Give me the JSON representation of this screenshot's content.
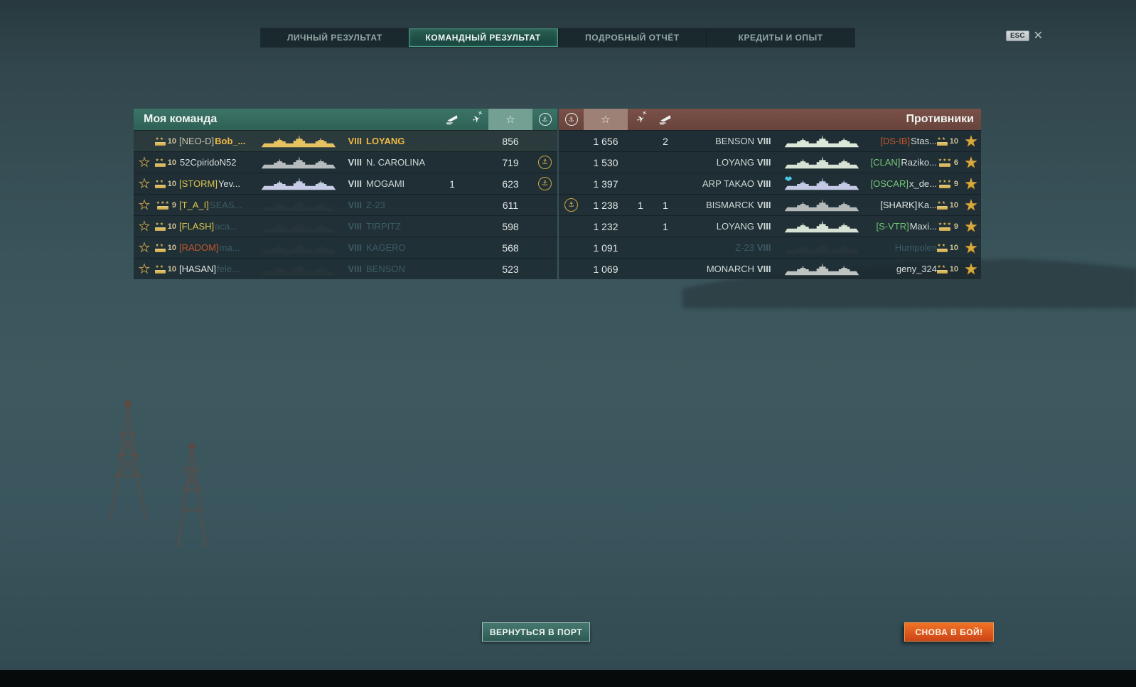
{
  "tabs": [
    {
      "label": "ЛИЧНЫЙ РЕЗУЛЬТАТ",
      "active": false
    },
    {
      "label": "КОМАНДНЫЙ РЕЗУЛЬТАТ",
      "active": true
    },
    {
      "label": "ПОДРОБНЫЙ ОТЧЁТ",
      "active": false
    },
    {
      "label": "КРЕДИТЫ И ОПЫТ",
      "active": false
    }
  ],
  "esc_label": "ESC",
  "close_glyph": "✕",
  "colors": {
    "team_header": "#35685d",
    "team_header_highlight": "#73a093",
    "enemy_header": "#70463d",
    "enemy_header_highlight": "#9d8076",
    "player_gold": "#efb845",
    "dead_text": "#3c5a64",
    "clan_yellow": "#d8c54e",
    "clan_orange": "#c2562b",
    "clan_green": "#74c578",
    "clan_white": "#e2e6e4",
    "clan_tan": "#c6c2ae",
    "medal_gold": "#d9b752",
    "button_orange": "#e8641e",
    "button_teal": "#3c6e66"
  },
  "header_icons": [
    "sinking-ship-icon",
    "downed-plane-icon",
    "star-icon",
    "anchor-medal-icon"
  ],
  "my_team": {
    "title": "Моя команда",
    "rows": [
      {
        "like": false,
        "rank": "10",
        "rank_stars": 2,
        "clan": "[NEO-D]",
        "clan_color": "#c6c2ae",
        "name": "Bob_...",
        "player": true,
        "dead": false,
        "tier": "VIII",
        "ship": "LOYANG",
        "ship_color": "#e6c260",
        "ship_kills": "",
        "plane_kills": "",
        "xp": "856",
        "medal": false
      },
      {
        "like": true,
        "rank": "10",
        "rank_stars": 2,
        "clan": "",
        "clan_color": "",
        "name": "52CpiridoN52",
        "player": false,
        "dead": false,
        "tier": "VIII",
        "ship": "N. CAROLINA",
        "ship_color": "#b6bcbe",
        "ship_kills": "",
        "plane_kills": "",
        "xp": "719",
        "medal": true
      },
      {
        "like": true,
        "rank": "10",
        "rank_stars": 2,
        "clan": "[STORM]",
        "clan_color": "#d8c54e",
        "name": "Yev...",
        "player": false,
        "dead": false,
        "tier": "VIII",
        "ship": "MOGAMI",
        "ship_color": "#c6cbe6",
        "ship_kills": "1",
        "plane_kills": "",
        "xp": "623",
        "medal": true
      },
      {
        "like": true,
        "rank": "9",
        "rank_stars": 3,
        "clan": "[T_A_I]",
        "clan_color": "#d8c54e",
        "name": "SEAS...",
        "player": false,
        "dead": true,
        "tier": "VIII",
        "ship": "Z-23",
        "ship_color": "#263439",
        "ship_kills": "",
        "plane_kills": "",
        "xp": "611",
        "medal": false
      },
      {
        "like": true,
        "rank": "10",
        "rank_stars": 2,
        "clan": "[FLASH]",
        "clan_color": "#d8c54e",
        "name": "aca...",
        "player": false,
        "dead": true,
        "tier": "VIII",
        "ship": "TIRPITZ",
        "ship_color": "#263439",
        "ship_kills": "",
        "plane_kills": "",
        "xp": "598",
        "medal": false
      },
      {
        "like": true,
        "rank": "10",
        "rank_stars": 2,
        "clan": "[RADOM]",
        "clan_color": "#c2562b",
        "name": "ma...",
        "player": false,
        "dead": true,
        "tier": "VIII",
        "ship": "KAGERO",
        "ship_color": "#263439",
        "ship_kills": "",
        "plane_kills": "",
        "xp": "568",
        "medal": false
      },
      {
        "like": true,
        "rank": "10",
        "rank_stars": 2,
        "clan": "[HASAN]",
        "clan_color": "#e2e6e4",
        "name": "fele...",
        "player": false,
        "dead": true,
        "tier": "VIII",
        "ship": "BENSON",
        "ship_color": "#263439",
        "ship_kills": "",
        "plane_kills": "",
        "xp": "523",
        "medal": false
      }
    ]
  },
  "opponents": {
    "title": "Противники",
    "rows": [
      {
        "medal": false,
        "xp": "1 656",
        "plane_kills": "",
        "ship_kills": "2",
        "ship": "BENSON",
        "tier": "VIII",
        "ship_color": "#dce8d8",
        "special_icon": false,
        "clan": "[DS-IB]",
        "clan_color": "#c2562b",
        "name": "Stas...",
        "dead": false,
        "rank": "10",
        "rank_stars": 2,
        "star": true
      },
      {
        "medal": false,
        "xp": "1 530",
        "plane_kills": "",
        "ship_kills": "",
        "ship": "LOYANG",
        "tier": "VIII",
        "ship_color": "#d6e3d4",
        "special_icon": false,
        "clan": "[CLAN]",
        "clan_color": "#74c578",
        "name": "Raziko...",
        "dead": false,
        "rank": "6",
        "rank_stars": 3,
        "star": true
      },
      {
        "medal": false,
        "xp": "1 397",
        "plane_kills": "",
        "ship_kills": "",
        "ship": "ARP TAKAO",
        "tier": "VIII",
        "ship_color": "#c3c9e4",
        "special_icon": true,
        "clan": "[OSCAR]",
        "clan_color": "#74c578",
        "name": "x_de...",
        "dead": false,
        "rank": "9",
        "rank_stars": 3,
        "star": true
      },
      {
        "medal": true,
        "xp": "1 238",
        "plane_kills": "1",
        "ship_kills": "1",
        "ship": "BISMARCK",
        "tier": "VIII",
        "ship_color": "#b4bab9",
        "special_icon": false,
        "clan": "[SHARK]",
        "clan_color": "#e2e6e4",
        "name": "Ka...",
        "dead": false,
        "rank": "10",
        "rank_stars": 2,
        "star": true
      },
      {
        "medal": false,
        "xp": "1 232",
        "plane_kills": "",
        "ship_kills": "1",
        "ship": "LOYANG",
        "tier": "VIII",
        "ship_color": "#d6e3d4",
        "special_icon": false,
        "clan": "[S-VTR]",
        "clan_color": "#74c578",
        "name": "Maxi...",
        "dead": false,
        "rank": "9",
        "rank_stars": 3,
        "star": true
      },
      {
        "medal": false,
        "xp": "1 091",
        "plane_kills": "",
        "ship_kills": "",
        "ship": "Z-23",
        "tier": "VIII",
        "ship_color": "#263439",
        "special_icon": false,
        "clan": "",
        "clan_color": "",
        "name": "Humpolen",
        "dead": true,
        "rank": "10",
        "rank_stars": 2,
        "star": true
      },
      {
        "medal": false,
        "xp": "1 069",
        "plane_kills": "",
        "ship_kills": "",
        "ship": "MONARCH",
        "tier": "VIII",
        "ship_color": "#bdc3c0",
        "special_icon": false,
        "clan": "",
        "clan_color": "",
        "name": "geny_324",
        "dead": false,
        "rank": "10",
        "rank_stars": 2,
        "star": true
      }
    ]
  },
  "buttons": {
    "return_port": "ВЕРНУТЬСЯ В ПОРТ",
    "battle_again": "СНОВА В БОЙ!"
  }
}
